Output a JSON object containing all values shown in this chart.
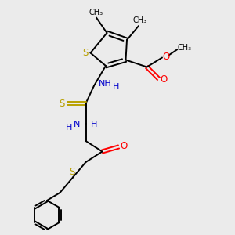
{
  "background_color": "#ebebeb",
  "bond_color": "#000000",
  "sulfur_color": "#b8a000",
  "nitrogen_color": "#0000cc",
  "oxygen_color": "#ff0000",
  "figsize": [
    3.0,
    3.0
  ],
  "dpi": 100,
  "xlim": [
    0,
    10
  ],
  "ylim": [
    0,
    10
  ]
}
